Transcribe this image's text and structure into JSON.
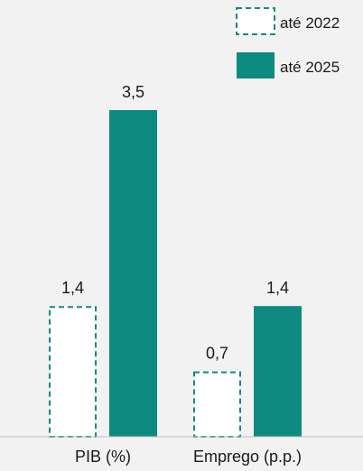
{
  "chart_data": {
    "type": "bar",
    "categories": [
      "PIB (%)",
      "Emprego (p.p.)"
    ],
    "series": [
      {
        "name": "até 2022",
        "values": [
          1.4,
          0.7
        ],
        "labels": [
          "1,4",
          "0,7"
        ],
        "style": "dashed-outline",
        "color": "#0e8a80"
      },
      {
        "name": "até 2025",
        "values": [
          3.5,
          1.4
        ],
        "labels": [
          "3,5",
          "1,4"
        ],
        "style": "filled",
        "color": "#0e8a80"
      }
    ],
    "ylim": [
      0,
      3.5
    ],
    "grid": false,
    "legend": "top-right",
    "title": "",
    "xlabel": "",
    "ylabel": ""
  }
}
